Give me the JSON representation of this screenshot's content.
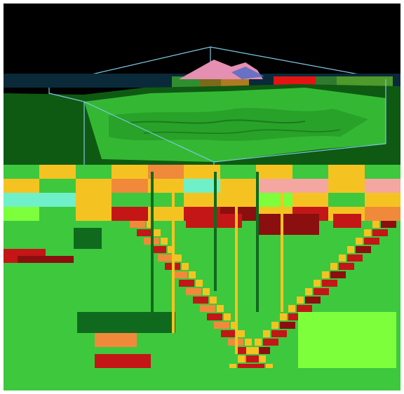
{
  "view": {
    "background_color": "#000000",
    "frame_color": "#ffffff"
  },
  "scene": {
    "type": "3d-terrain-render",
    "bounding_box_color": "#7ec8e3",
    "terrain_color": "#2fb82f",
    "terrain_shadow_color": "#1c7a1c",
    "peak_color": "#e58fb2",
    "peak_shadow_color": "#4a69c8"
  },
  "overlay": {
    "type": "glitched-classification-map",
    "palette": {
      "green": "#3ec83e",
      "bright_green": "#7dff3c",
      "yellow": "#f5c321",
      "orange": "#f08a3a",
      "red": "#c41616",
      "dark_red": "#8b0f0f",
      "cyan": "#6ff0c8",
      "pink": "#f4a6a0",
      "dark_green": "#0f6a1e"
    }
  }
}
